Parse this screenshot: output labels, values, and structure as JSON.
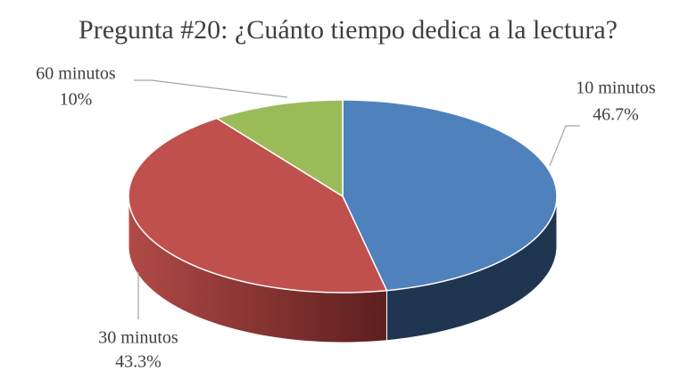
{
  "chart_data": {
    "type": "pie",
    "title": "Pregunta #20: ¿Cuánto tiempo dedica a la lectura?",
    "categories": [
      "10 minutos",
      "30 minutos",
      "60 minutos"
    ],
    "values": [
      46.7,
      43.3,
      10
    ],
    "value_labels": [
      "46.7%",
      "43.3%",
      "10%"
    ],
    "colors": [
      "#4f81bd",
      "#c0504d",
      "#9bbb59"
    ],
    "side_colors": [
      "#1f3550",
      "#7a2e2c",
      "#5f7a34"
    ],
    "start_angle": 0,
    "direction": "clockwise",
    "style": "3d"
  }
}
